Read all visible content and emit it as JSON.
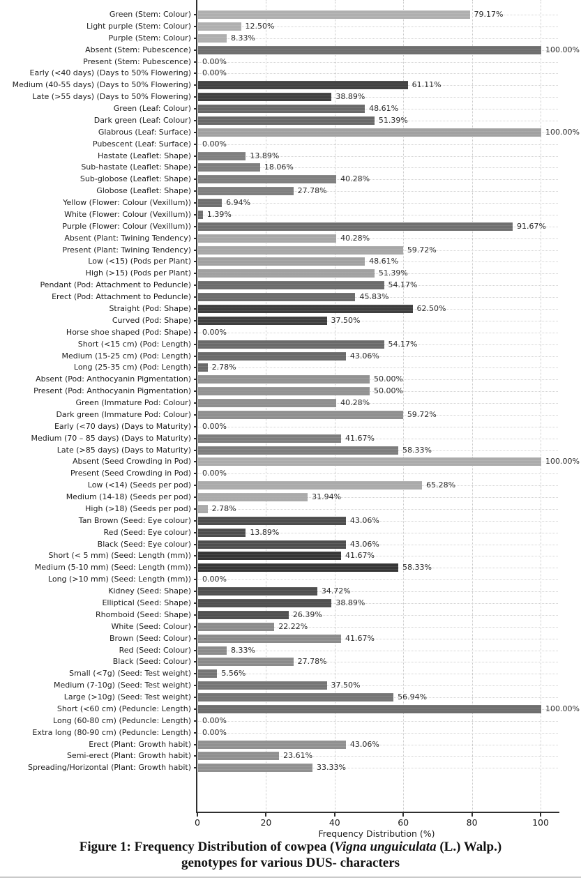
{
  "chart_data": {
    "type": "bar",
    "orientation": "horizontal",
    "xlabel": "Frequency Distribution (%)",
    "xlim": [
      0,
      105
    ],
    "xticks": [
      0,
      20,
      40,
      60,
      80,
      100
    ],
    "grid": "dotted",
    "legend": "none",
    "rows": [
      {
        "label": "Green (Stem: Colour)",
        "value": 79.17,
        "pct": "79.17%",
        "color": "#afafaf"
      },
      {
        "label": "Light purple (Stem: Colour)",
        "value": 12.5,
        "pct": "12.50%",
        "color": "#afafaf"
      },
      {
        "label": "Purple (Stem: Colour)",
        "value": 8.33,
        "pct": "8.33%",
        "color": "#afafaf"
      },
      {
        "label": "Absent (Stem: Pubescence)",
        "value": 100.0,
        "pct": "100.00%",
        "color": "#6e6e6e"
      },
      {
        "label": "Present (Stem: Pubescence)",
        "value": 0.0,
        "pct": "0.00%",
        "color": "#6e6e6e"
      },
      {
        "label": "Early (<40 days) (Days to 50% Flowering)",
        "value": 0.0,
        "pct": "0.00%",
        "color": "#414141"
      },
      {
        "label": "Medium (40-55 days) (Days to 50% Flowering)",
        "value": 61.11,
        "pct": "61.11%",
        "color": "#414141"
      },
      {
        "label": "Late (>55 days) (Days to 50% Flowering)",
        "value": 38.89,
        "pct": "38.89%",
        "color": "#414141"
      },
      {
        "label": "Green (Leaf: Colour)",
        "value": 48.61,
        "pct": "48.61%",
        "color": "#696969"
      },
      {
        "label": "Dark green (Leaf: Colour)",
        "value": 51.39,
        "pct": "51.39%",
        "color": "#696969"
      },
      {
        "label": "Glabrous (Leaf: Surface)",
        "value": 100.0,
        "pct": "100.00%",
        "color": "#a1a1a1"
      },
      {
        "label": "Pubescent (Leaf: Surface)",
        "value": 0.0,
        "pct": "0.00%",
        "color": "#a1a1a1"
      },
      {
        "label": "Hastate (Leaflet: Shape)",
        "value": 13.89,
        "pct": "13.89%",
        "color": "#7f7f7f"
      },
      {
        "label": "Sub-hastate (Leaflet: Shape)",
        "value": 18.06,
        "pct": "18.06%",
        "color": "#7f7f7f"
      },
      {
        "label": "Sub-globose (Leaflet: Shape)",
        "value": 40.28,
        "pct": "40.28%",
        "color": "#7f7f7f"
      },
      {
        "label": "Globose (Leaflet: Shape)",
        "value": 27.78,
        "pct": "27.78%",
        "color": "#7f7f7f"
      },
      {
        "label": "Yellow (Flower: Colour (Vexillum))",
        "value": 6.94,
        "pct": "6.94%",
        "color": "#6f6f6f"
      },
      {
        "label": "White (Flower: Colour (Vexillum))",
        "value": 1.39,
        "pct": "1.39%",
        "color": "#6f6f6f"
      },
      {
        "label": "Purple (Flower: Colour (Vexillum))",
        "value": 91.67,
        "pct": "91.67%",
        "color": "#6f6f6f"
      },
      {
        "label": "Absent (Plant: Twining Tendency)",
        "value": 40.28,
        "pct": "40.28%",
        "color": "#a7a7a7"
      },
      {
        "label": "Present (Plant: Twining Tendency)",
        "value": 59.72,
        "pct": "59.72%",
        "color": "#a7a7a7"
      },
      {
        "label": "Low (<15) (Pods per Plant)",
        "value": 48.61,
        "pct": "48.61%",
        "color": "#a1a1a1"
      },
      {
        "label": "High (>15) (Pods per Plant)",
        "value": 51.39,
        "pct": "51.39%",
        "color": "#a1a1a1"
      },
      {
        "label": "Pendant (Pod: Attachment to Peduncle)",
        "value": 54.17,
        "pct": "54.17%",
        "color": "#6b6b6b"
      },
      {
        "label": "Erect (Pod: Attachment to Peduncle)",
        "value": 45.83,
        "pct": "45.83%",
        "color": "#6b6b6b"
      },
      {
        "label": "Straight (Pod: Shape)",
        "value": 62.5,
        "pct": "62.50%",
        "color": "#3f3f3f"
      },
      {
        "label": "Curved (Pod: Shape)",
        "value": 37.5,
        "pct": "37.50%",
        "color": "#3f3f3f"
      },
      {
        "label": "Horse shoe shaped (Pod: Shape)",
        "value": 0.0,
        "pct": "0.00%",
        "color": "#3f3f3f"
      },
      {
        "label": "Short (<15 cm) (Pod: Length)",
        "value": 54.17,
        "pct": "54.17%",
        "color": "#6a6a6a"
      },
      {
        "label": "Medium (15-25 cm) (Pod: Length)",
        "value": 43.06,
        "pct": "43.06%",
        "color": "#6a6a6a"
      },
      {
        "label": "Long (25-35 cm) (Pod: Length)",
        "value": 2.78,
        "pct": "2.78%",
        "color": "#6a6a6a"
      },
      {
        "label": "Absent (Pod: Anthocyanin Pigmentation)",
        "value": 50.0,
        "pct": "50.00%",
        "color": "#929292"
      },
      {
        "label": "Present (Pod: Anthocyanin Pigmentation)",
        "value": 50.0,
        "pct": "50.00%",
        "color": "#929292"
      },
      {
        "label": "Green (Immature Pod: Colour)",
        "value": 40.28,
        "pct": "40.28%",
        "color": "#8f8f8f"
      },
      {
        "label": "Dark green (Immature Pod: Colour)",
        "value": 59.72,
        "pct": "59.72%",
        "color": "#8f8f8f"
      },
      {
        "label": "Early (<70 days) (Days to Maturity)",
        "value": 0.0,
        "pct": "0.00%",
        "color": "#7d7d7d"
      },
      {
        "label": "Medium (70 – 85 days) (Days to Maturity)",
        "value": 41.67,
        "pct": "41.67%",
        "color": "#7d7d7d"
      },
      {
        "label": "Late (>85 days) (Days to Maturity)",
        "value": 58.33,
        "pct": "58.33%",
        "color": "#7d7d7d"
      },
      {
        "label": "Absent (Seed Crowding in Pod)",
        "value": 100.0,
        "pct": "100.00%",
        "color": "#ababab"
      },
      {
        "label": "Present (Seed Crowding in Pod)",
        "value": 0.0,
        "pct": "0.00%",
        "color": "#ababab"
      },
      {
        "label": "Low (<14) (Seeds per pod)",
        "value": 65.28,
        "pct": "65.28%",
        "color": "#aaaaaa"
      },
      {
        "label": "Medium (14-18) (Seeds per pod)",
        "value": 31.94,
        "pct": "31.94%",
        "color": "#aaaaaa"
      },
      {
        "label": "High (>18) (Seeds per pod)",
        "value": 2.78,
        "pct": "2.78%",
        "color": "#aaaaaa"
      },
      {
        "label": "Tan Brown (Seed: Eye colour)",
        "value": 43.06,
        "pct": "43.06%",
        "color": "#4d4d4d"
      },
      {
        "label": "Red (Seed: Eye colour)",
        "value": 13.89,
        "pct": "13.89%",
        "color": "#4d4d4d"
      },
      {
        "label": "Black (Seed: Eye colour)",
        "value": 43.06,
        "pct": "43.06%",
        "color": "#4d4d4d"
      },
      {
        "label": "Short (< 5 mm) (Seed: Length (mm))",
        "value": 41.67,
        "pct": "41.67%",
        "color": "#363636"
      },
      {
        "label": "Medium (5-10 mm) (Seed: Length (mm))",
        "value": 58.33,
        "pct": "58.33%",
        "color": "#363636"
      },
      {
        "label": "Long (>10 mm) (Seed: Length (mm))",
        "value": 0.0,
        "pct": "0.00%",
        "color": "#363636"
      },
      {
        "label": "Kidney (Seed: Shape)",
        "value": 34.72,
        "pct": "34.72%",
        "color": "#4f4f4f"
      },
      {
        "label": "Elliptical (Seed: Shape)",
        "value": 38.89,
        "pct": "38.89%",
        "color": "#4f4f4f"
      },
      {
        "label": "Rhomboid (Seed: Shape)",
        "value": 26.39,
        "pct": "26.39%",
        "color": "#4f4f4f"
      },
      {
        "label": "White (Seed: Colour)",
        "value": 22.22,
        "pct": "22.22%",
        "color": "#8b8b8b"
      },
      {
        "label": "Brown (Seed: Colour)",
        "value": 41.67,
        "pct": "41.67%",
        "color": "#8b8b8b"
      },
      {
        "label": "Red (Seed: Colour)",
        "value": 8.33,
        "pct": "8.33%",
        "color": "#8b8b8b"
      },
      {
        "label": "Black (Seed: Colour)",
        "value": 27.78,
        "pct": "27.78%",
        "color": "#8b8b8b"
      },
      {
        "label": "Small (<7g) (Seed: Test weight)",
        "value": 5.56,
        "pct": "5.56%",
        "color": "#757575"
      },
      {
        "label": "Medium (7-10g) (Seed: Test weight)",
        "value": 37.5,
        "pct": "37.50%",
        "color": "#757575"
      },
      {
        "label": "Large (>10g) (Seed: Test weight)",
        "value": 56.94,
        "pct": "56.94%",
        "color": "#757575"
      },
      {
        "label": "Short (<60 cm) (Peduncle: Length)",
        "value": 100.0,
        "pct": "100.00%",
        "color": "#6d6d6d"
      },
      {
        "label": "Long (60-80 cm) (Peduncle: Length)",
        "value": 0.0,
        "pct": "0.00%",
        "color": "#6d6d6d"
      },
      {
        "label": "Extra long (80-90 cm) (Peduncle: Length)",
        "value": 0.0,
        "pct": "0.00%",
        "color": "#6d6d6d"
      },
      {
        "label": "Erect (Plant: Growth habit)",
        "value": 43.06,
        "pct": "43.06%",
        "color": "#909090"
      },
      {
        "label": "Semi-erect (Plant: Growth habit)",
        "value": 23.61,
        "pct": "23.61%",
        "color": "#909090"
      },
      {
        "label": "Spreading/Horizontal (Plant: Growth habit)",
        "value": 33.33,
        "pct": "33.33%",
        "color": "#909090"
      }
    ]
  },
  "caption": {
    "line1_prefix": "Figure 1: Frequency Distribution of cowpea (",
    "line1_italic": "Vigna unguiculata",
    "line1_suffix": " (L.) Walp.)",
    "line2": "genotypes for various DUS- characters"
  }
}
